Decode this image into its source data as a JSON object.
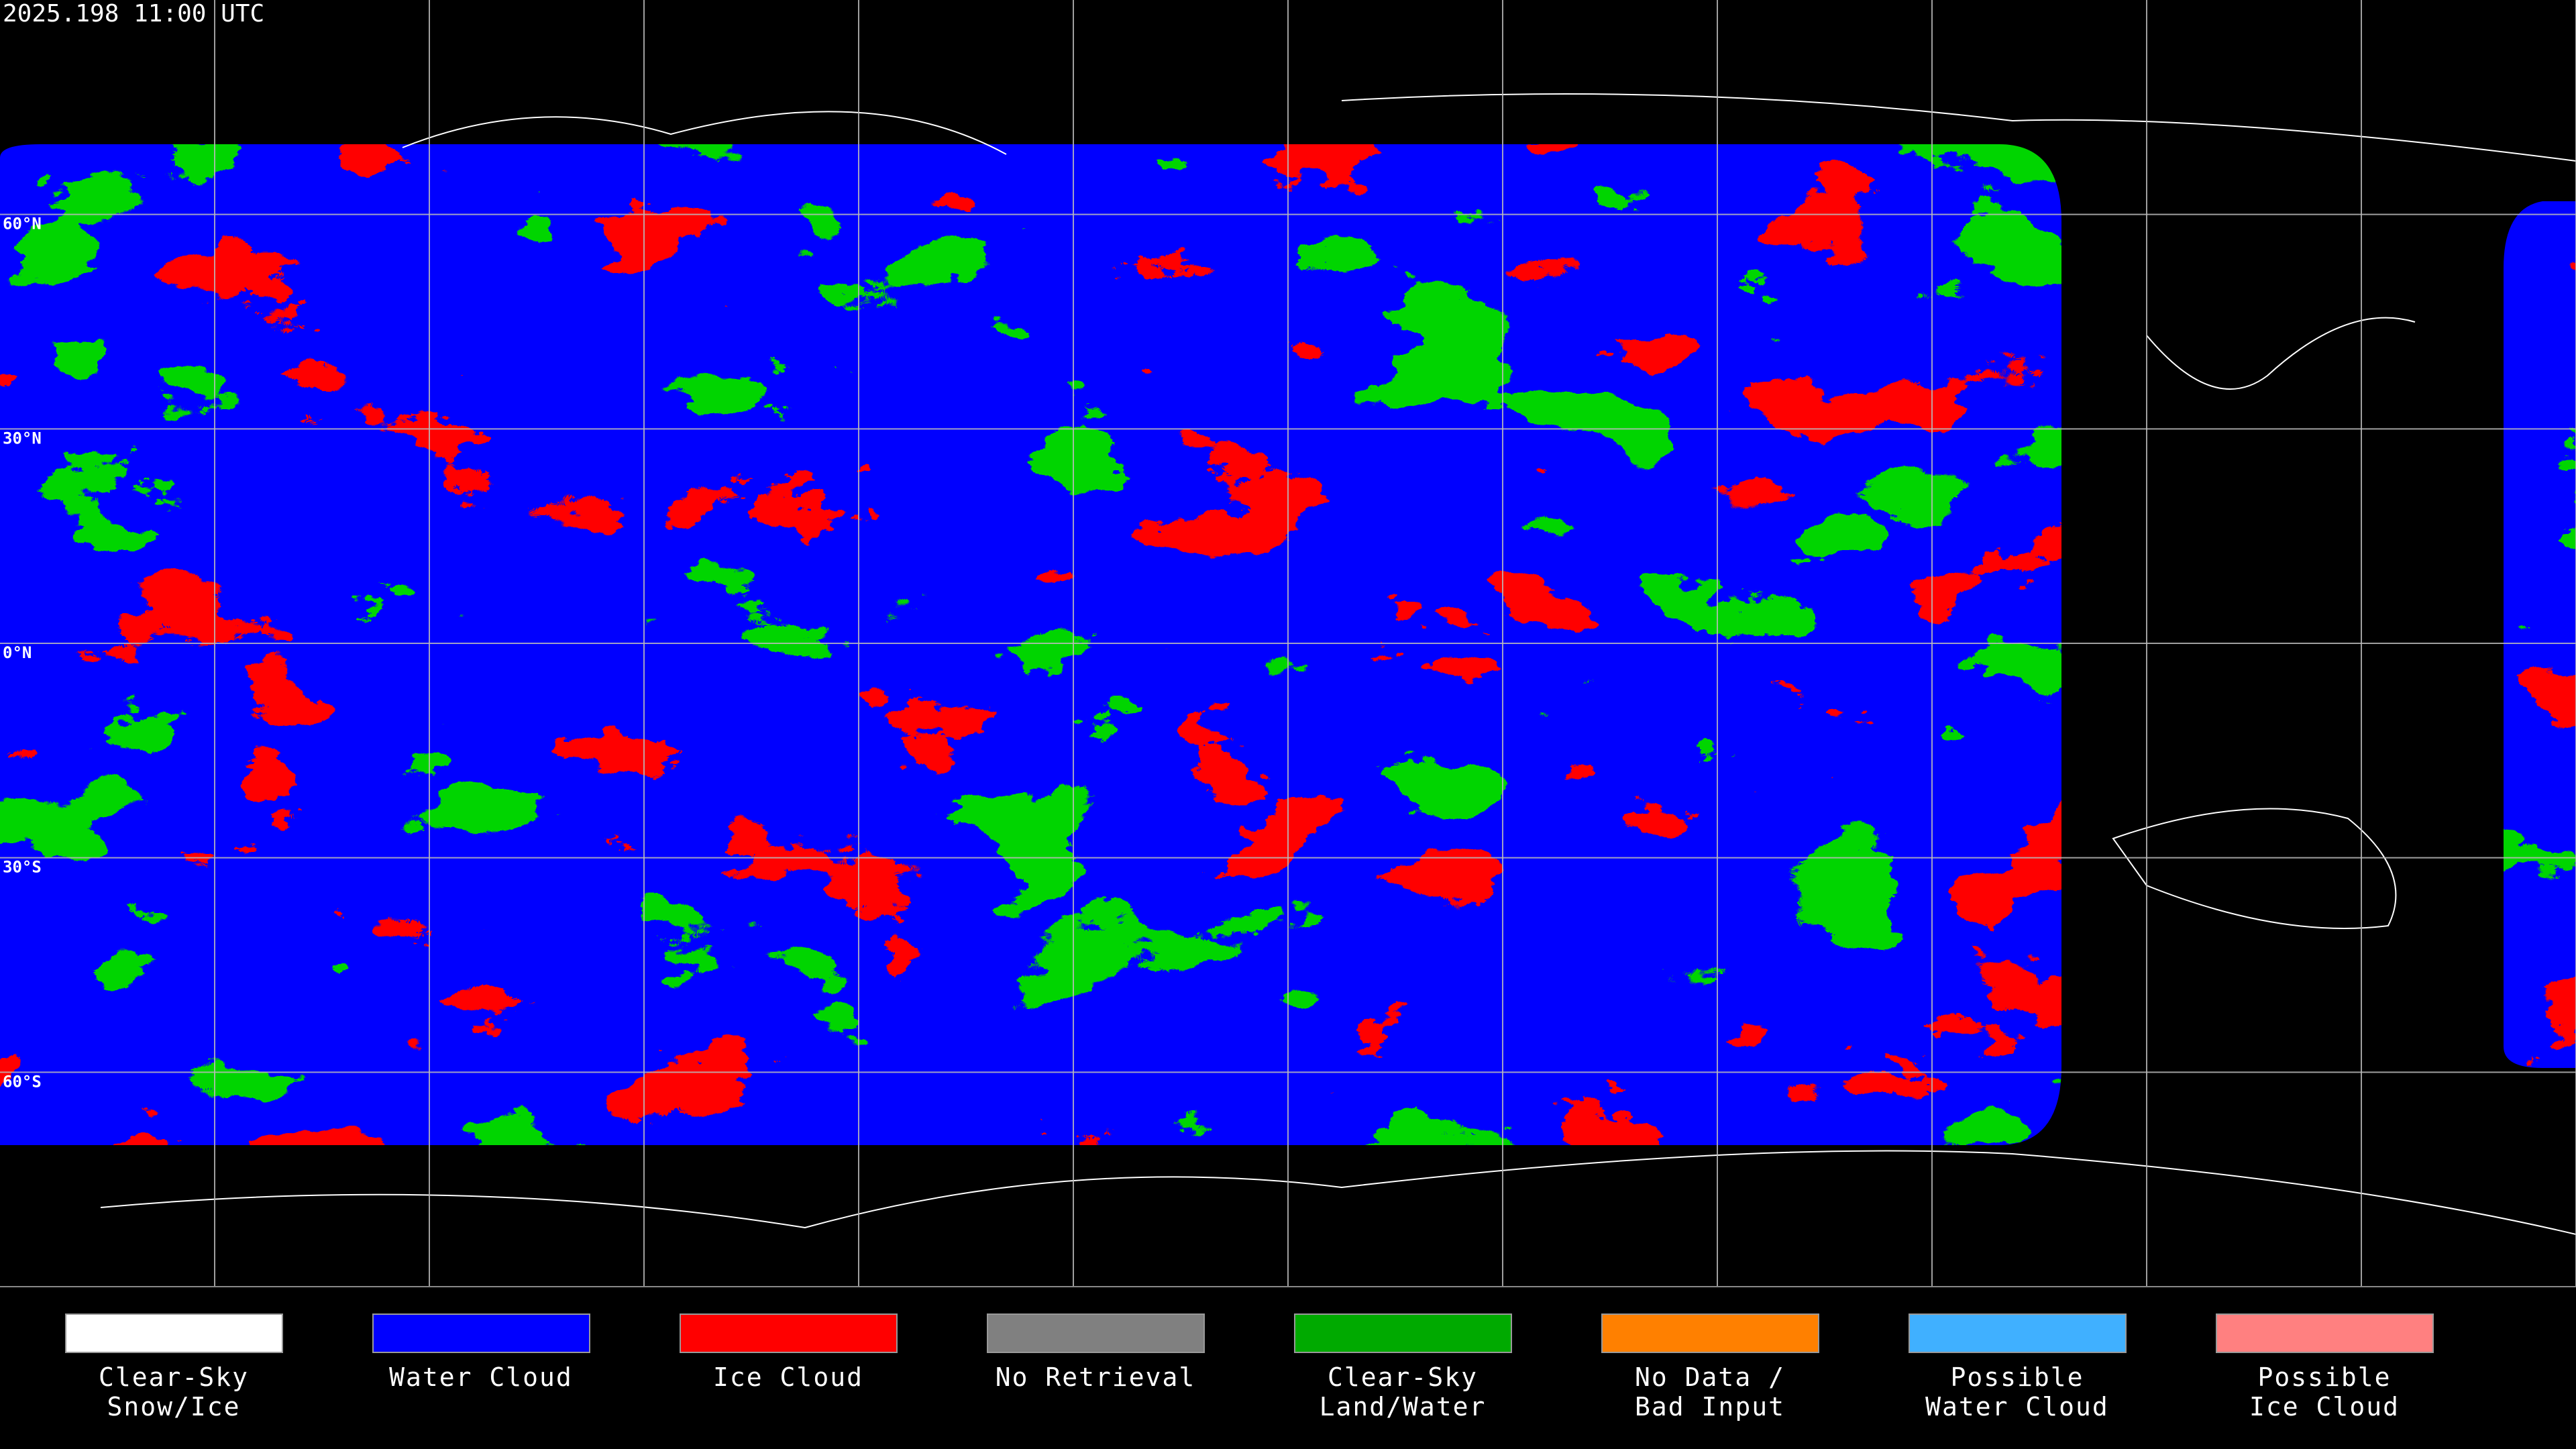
{
  "timestamp": "2025.198 11:00 UTC",
  "latitude_labels": [
    "60°N",
    "30°N",
    "0°N",
    "30°S",
    "60°S"
  ],
  "legend": [
    {
      "label": [
        "Clear-Sky",
        "Snow/Ice"
      ],
      "color": "#ffffff"
    },
    {
      "label": [
        "Water Cloud"
      ],
      "color": "#0000ff"
    },
    {
      "label": [
        "Ice Cloud"
      ],
      "color": "#ff0000"
    },
    {
      "label": [
        "No Retrieval"
      ],
      "color": "#808080"
    },
    {
      "label": [
        "Clear-Sky",
        "Land/Water"
      ],
      "color": "#00aa00"
    },
    {
      "label": [
        "No Data /",
        "Bad Input"
      ],
      "color": "#ff8000"
    },
    {
      "label": [
        "Possible",
        "Water Cloud"
      ],
      "color": "#40b0ff"
    },
    {
      "label": [
        "Possible",
        "Ice Cloud"
      ],
      "color": "#ff8080"
    }
  ]
}
